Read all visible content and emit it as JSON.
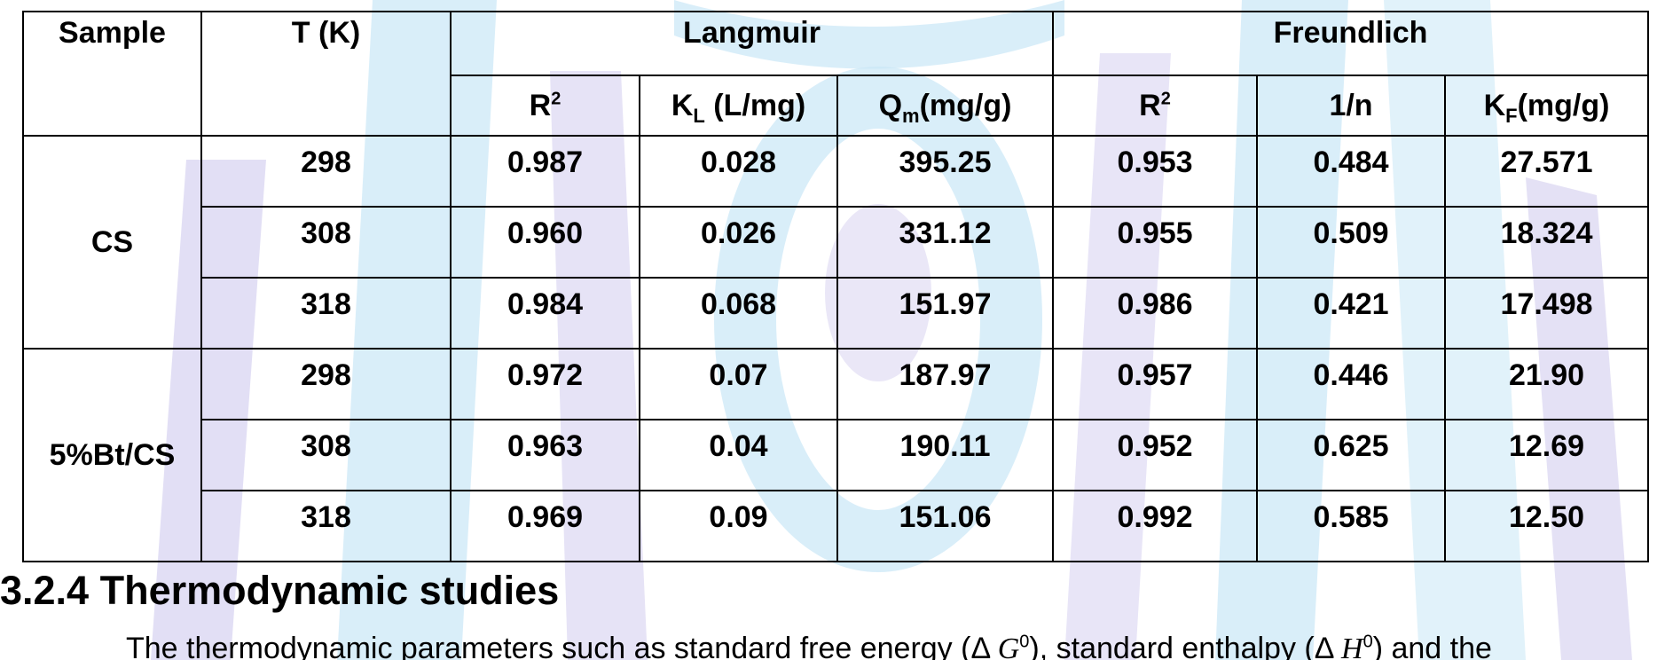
{
  "table": {
    "headers": {
      "sample": "Sample",
      "temperature": "T (K)",
      "langmuir": "Langmuir",
      "freundlich": "Freundlich",
      "r": "R",
      "r_sup": "2",
      "kl_main": "K",
      "kl_sub": "L",
      "kl_unit": " (L/mg)",
      "qm_main": "Q",
      "qm_sub": "m",
      "qm_unit": "(mg/g)",
      "n_inv": "1/n",
      "kf_main": "K",
      "kf_sub": "F",
      "kf_unit": "(mg/g)"
    },
    "groups": [
      {
        "sample": "CS",
        "rows": [
          {
            "t": "298",
            "l_r2": "0.987",
            "kl": "0.028",
            "qm": "395.25",
            "f_r2": "0.953",
            "n": "0.484",
            "kf": "27.571"
          },
          {
            "t": "308",
            "l_r2": "0.960",
            "kl": "0.026",
            "qm": "331.12",
            "f_r2": "0.955",
            "n": "0.509",
            "kf": "18.324"
          },
          {
            "t": "318",
            "l_r2": "0.984",
            "kl": "0.068",
            "qm": "151.97",
            "f_r2": "0.986",
            "n": "0.421",
            "kf": "17.498"
          }
        ]
      },
      {
        "sample": "5%Bt/CS",
        "rows": [
          {
            "t": "298",
            "l_r2": "0.972",
            "kl": "0.07",
            "qm": "187.97",
            "f_r2": "0.957",
            "n": "0.446",
            "kf": "21.90"
          },
          {
            "t": "308",
            "l_r2": "0.963",
            "kl": "0.04",
            "qm": "190.11",
            "f_r2": "0.952",
            "n": "0.625",
            "kf": "12.69"
          },
          {
            "t": "318",
            "l_r2": "0.969",
            "kl": "0.09",
            "qm": "151.06",
            "f_r2": "0.992",
            "n": "0.585",
            "kf": "12.50"
          }
        ]
      }
    ]
  },
  "section": {
    "heading": "3.2.4 Thermodynamic studies"
  },
  "body": {
    "text_a": "The thermodynamic parameters such as standard free energy (Δ ",
    "g_symbol": "G",
    "g_sup": "0",
    "text_b": "), standard enthalpy (Δ ",
    "h_symbol": "H",
    "h_sup": "0",
    "text_c": ") and the"
  },
  "colors": {
    "watermark_blue": "#bfe3f5",
    "watermark_purple": "#d6d2f0"
  }
}
